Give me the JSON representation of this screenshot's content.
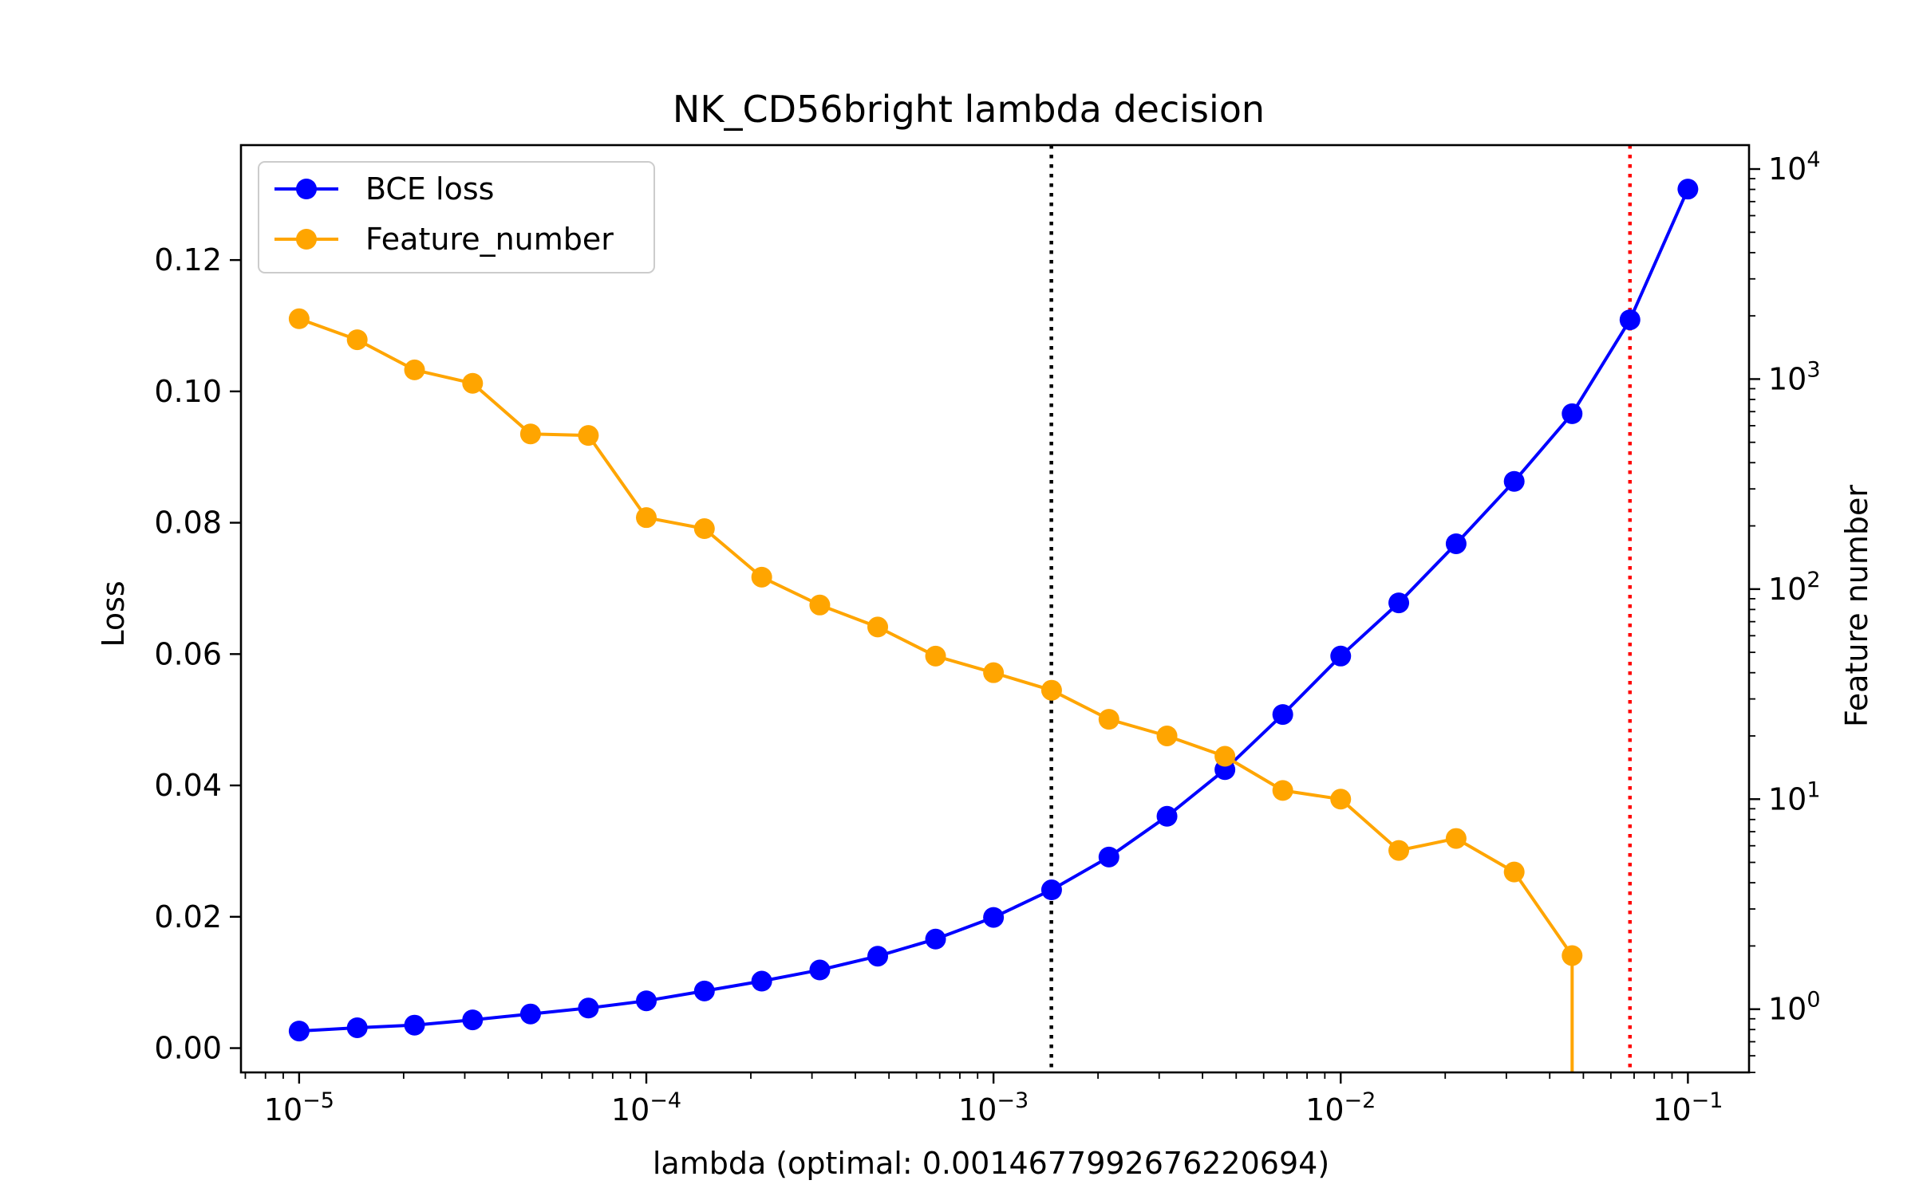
{
  "chart_data": {
    "type": "line",
    "title": "NK_CD56bright lambda decision",
    "xlabel": "lambda (optimal: 0.0014677992676220694)",
    "ylabel": "Loss",
    "y2label": "Feature number",
    "x_scale": "log",
    "xlim": [
      6.8e-06,
      0.15
    ],
    "ylim": [
      -0.0037,
      0.1375
    ],
    "y2_scale": "log",
    "y2lim": [
      0.5,
      13000
    ],
    "x_ticks": [
      {
        "value": 1e-05,
        "base": "10",
        "exp": "−5"
      },
      {
        "value": 0.0001,
        "base": "10",
        "exp": "−4"
      },
      {
        "value": 0.001,
        "base": "10",
        "exp": "−3"
      },
      {
        "value": 0.01,
        "base": "10",
        "exp": "−2"
      },
      {
        "value": 0.1,
        "base": "10",
        "exp": "−1"
      }
    ],
    "y_ticks": [
      {
        "value": 0.0,
        "label": "0.00"
      },
      {
        "value": 0.02,
        "label": "0.02"
      },
      {
        "value": 0.04,
        "label": "0.04"
      },
      {
        "value": 0.06,
        "label": "0.06"
      },
      {
        "value": 0.08,
        "label": "0.08"
      },
      {
        "value": 0.1,
        "label": "0.10"
      },
      {
        "value": 0.12,
        "label": "0.12"
      }
    ],
    "y2_ticks": [
      {
        "value": 1,
        "base": "10",
        "exp": "0"
      },
      {
        "value": 10,
        "base": "10",
        "exp": "1"
      },
      {
        "value": 100,
        "base": "10",
        "exp": "2"
      },
      {
        "value": 1000,
        "base": "10",
        "exp": "3"
      },
      {
        "value": 10000,
        "base": "10",
        "exp": "4"
      }
    ],
    "x": [
      1e-05,
      1.47e-05,
      2.15e-05,
      3.16e-05,
      4.64e-05,
      6.81e-05,
      0.0001,
      0.000147,
      0.000215,
      0.000316,
      0.000464,
      0.000681,
      0.001,
      0.00147,
      0.00215,
      0.00316,
      0.00464,
      0.00681,
      0.01,
      0.0147,
      0.0215,
      0.0316,
      0.0464,
      0.0681,
      0.1
    ],
    "series": [
      {
        "name": "BCE loss",
        "color": "#0000ff",
        "axis": "left",
        "values": [
          0.0026,
          0.0031,
          0.0035,
          0.0043,
          0.0052,
          0.0061,
          0.0072,
          0.0087,
          0.0102,
          0.0119,
          0.014,
          0.0166,
          0.0199,
          0.0241,
          0.0291,
          0.0353,
          0.0424,
          0.0508,
          0.0597,
          0.0678,
          0.0768,
          0.0863,
          0.0966,
          0.1109,
          0.1308
        ]
      },
      {
        "name": "Feature_number",
        "color": "#ffa500",
        "axis": "right",
        "values": [
          1937,
          1539,
          1106,
          955,
          548,
          539,
          219,
          194,
          114,
          84,
          66,
          48,
          40,
          33,
          24,
          20,
          16,
          11,
          10,
          5.7,
          6.5,
          4.5,
          1.8,
          null,
          null
        ],
        "drop_to_zero_after_index": 22
      }
    ],
    "vlines": [
      {
        "x": 0.0014677992676220694,
        "color": "#000000",
        "style": "dotted"
      },
      {
        "x": 0.0681,
        "color": "#ff0000",
        "style": "dotted"
      }
    ],
    "legend": {
      "placement": "upper-left",
      "entries": [
        "BCE loss",
        "Feature_number"
      ]
    },
    "grid": false
  }
}
